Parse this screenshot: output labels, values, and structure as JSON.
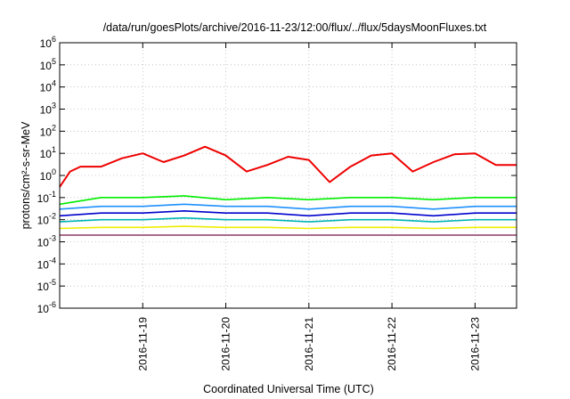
{
  "chart_data": {
    "type": "line",
    "title": "/data/run/goesPlots/archive/2016-11-23/12:00/flux/../flux/5daysMoonFluxes.txt",
    "xlabel": "Coordinated Universal Time (UTC)",
    "ylabel": "protons/cm²-s-sr-MeV",
    "yscale": "log",
    "ylim": [
      1e-06,
      1000000
    ],
    "xlim": [
      "2016-11-18T00:00",
      "2016-11-23T12:00"
    ],
    "x_ticks": [
      "2016-11-19",
      "2016-11-20",
      "2016-11-21",
      "2016-11-22",
      "2016-11-23"
    ],
    "y_ticks": [
      {
        "base": "10",
        "exp": "6"
      },
      {
        "base": "10",
        "exp": "5"
      },
      {
        "base": "10",
        "exp": "4"
      },
      {
        "base": "10",
        "exp": "3"
      },
      {
        "base": "10",
        "exp": "2"
      },
      {
        "base": "10",
        "exp": "1"
      },
      {
        "base": "10",
        "exp": "0"
      },
      {
        "base": "10",
        "exp": "-1"
      },
      {
        "base": "10",
        "exp": "-2"
      },
      {
        "base": "10",
        "exp": "-3"
      },
      {
        "base": "10",
        "exp": "-4"
      },
      {
        "base": "10",
        "exp": "-5"
      },
      {
        "base": "10",
        "exp": "-6"
      }
    ],
    "grid": true,
    "series": [
      {
        "color": "#ee0000",
        "x": [
          "2016-11-18T00:00",
          "2016-11-18T03:00",
          "2016-11-18T06:00",
          "2016-11-18T12:00",
          "2016-11-18T18:00",
          "2016-11-19T00:00",
          "2016-11-19T06:00",
          "2016-11-19T12:00",
          "2016-11-19T18:00",
          "2016-11-20T00:00",
          "2016-11-20T06:00",
          "2016-11-20T12:00",
          "2016-11-20T18:00",
          "2016-11-21T00:00",
          "2016-11-21T06:00",
          "2016-11-21T12:00",
          "2016-11-21T18:00",
          "2016-11-22T00:00",
          "2016-11-22T06:00",
          "2016-11-22T12:00",
          "2016-11-22T18:00",
          "2016-11-23T00:00",
          "2016-11-23T06:00",
          "2016-11-23T12:00"
        ],
        "values": [
          0.3,
          1.5,
          2.5,
          2.5,
          6,
          10,
          4,
          8,
          20,
          8,
          1.5,
          3,
          7,
          5,
          0.5,
          2.5,
          8,
          10,
          1.5,
          4,
          9,
          10,
          3,
          3
        ]
      },
      {
        "color": "#00ee00",
        "x": [
          "2016-11-18T00:00",
          "2016-11-18T12:00",
          "2016-11-19T00:00",
          "2016-11-19T12:00",
          "2016-11-20T00:00",
          "2016-11-20T12:00",
          "2016-11-21T00:00",
          "2016-11-21T12:00",
          "2016-11-22T00:00",
          "2016-11-22T12:00",
          "2016-11-23T00:00",
          "2016-11-23T12:00"
        ],
        "values": [
          0.05,
          0.1,
          0.1,
          0.12,
          0.08,
          0.1,
          0.08,
          0.1,
          0.1,
          0.08,
          0.1,
          0.1
        ]
      },
      {
        "color": "#1e90ff",
        "x": [
          "2016-11-18T00:00",
          "2016-11-18T12:00",
          "2016-11-19T00:00",
          "2016-11-19T12:00",
          "2016-11-20T00:00",
          "2016-11-20T12:00",
          "2016-11-21T00:00",
          "2016-11-21T12:00",
          "2016-11-22T00:00",
          "2016-11-22T12:00",
          "2016-11-23T00:00",
          "2016-11-23T12:00"
        ],
        "values": [
          0.03,
          0.04,
          0.04,
          0.05,
          0.04,
          0.04,
          0.03,
          0.04,
          0.04,
          0.03,
          0.04,
          0.04
        ]
      },
      {
        "color": "#0000cd",
        "x": [
          "2016-11-18T00:00",
          "2016-11-18T12:00",
          "2016-11-19T00:00",
          "2016-11-19T12:00",
          "2016-11-20T00:00",
          "2016-11-20T12:00",
          "2016-11-21T00:00",
          "2016-11-21T12:00",
          "2016-11-22T00:00",
          "2016-11-22T12:00",
          "2016-11-23T00:00",
          "2016-11-23T12:00"
        ],
        "values": [
          0.015,
          0.02,
          0.02,
          0.025,
          0.02,
          0.02,
          0.015,
          0.02,
          0.02,
          0.015,
          0.02,
          0.02
        ]
      },
      {
        "color": "#00b4b4",
        "x": [
          "2016-11-18T00:00",
          "2016-11-18T12:00",
          "2016-11-19T00:00",
          "2016-11-19T12:00",
          "2016-11-20T00:00",
          "2016-11-20T12:00",
          "2016-11-21T00:00",
          "2016-11-21T12:00",
          "2016-11-22T00:00",
          "2016-11-22T12:00",
          "2016-11-23T00:00",
          "2016-11-23T12:00"
        ],
        "values": [
          0.008,
          0.01,
          0.01,
          0.012,
          0.01,
          0.01,
          0.008,
          0.01,
          0.01,
          0.008,
          0.01,
          0.01
        ]
      },
      {
        "color": "#eeee00",
        "x": [
          "2016-11-18T00:00",
          "2016-11-18T12:00",
          "2016-11-19T00:00",
          "2016-11-19T12:00",
          "2016-11-20T00:00",
          "2016-11-20T12:00",
          "2016-11-21T00:00",
          "2016-11-21T12:00",
          "2016-11-22T00:00",
          "2016-11-22T12:00",
          "2016-11-23T00:00",
          "2016-11-23T12:00"
        ],
        "values": [
          0.004,
          0.0045,
          0.0045,
          0.005,
          0.0045,
          0.0045,
          0.004,
          0.0045,
          0.0045,
          0.004,
          0.0045,
          0.0045
        ]
      },
      {
        "color": "#8b3a62",
        "x": [
          "2016-11-18T00:00",
          "2016-11-18T12:00",
          "2016-11-19T00:00",
          "2016-11-19T12:00",
          "2016-11-20T00:00",
          "2016-11-20T12:00",
          "2016-11-21T00:00",
          "2016-11-21T12:00",
          "2016-11-22T00:00",
          "2016-11-22T12:00",
          "2016-11-23T00:00",
          "2016-11-23T12:00"
        ],
        "values": [
          0.002,
          0.002,
          0.002,
          0.002,
          0.002,
          0.002,
          0.002,
          0.002,
          0.002,
          0.002,
          0.002,
          0.002
        ]
      }
    ]
  }
}
